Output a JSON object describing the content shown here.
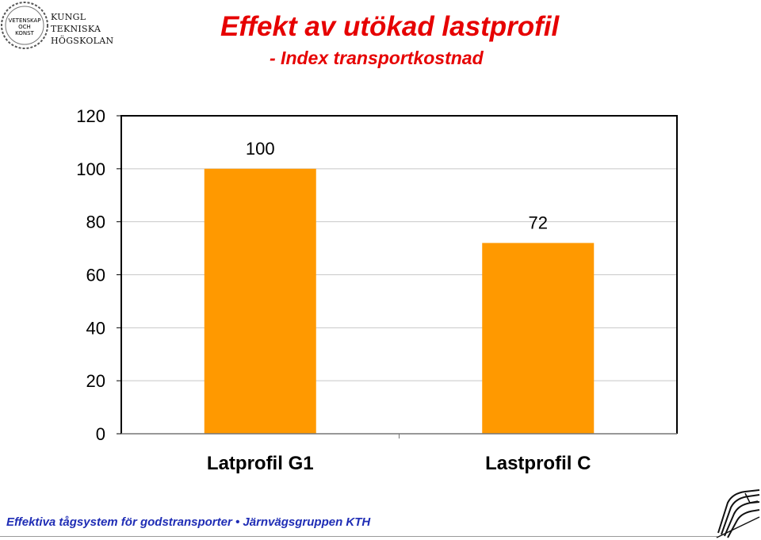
{
  "header": {
    "title": "Effekt av utökad lastprofil",
    "subtitle": "- Index transportkostnad"
  },
  "logo": {
    "seal_text": [
      "VETENSKAP",
      "OCH",
      "KONST"
    ],
    "lines": [
      "KUNGL",
      "TEKNISKA",
      "HÖGSKOLAN"
    ]
  },
  "footer": {
    "text": "Effektiva tågsystem för godstransporter • Järnvägsgruppen  KTH"
  },
  "colors": {
    "title": "#e60000",
    "bar": "#ff9900",
    "footer": "#1f2db5",
    "axis": "#000000",
    "grid": "#c8c8c8"
  },
  "chart_data": {
    "type": "bar",
    "title": "",
    "xlabel": "",
    "ylabel": "",
    "categories": [
      "Latprofil G1",
      "Lastprofil C"
    ],
    "values": [
      100,
      72
    ],
    "data_labels": [
      "100",
      "72"
    ],
    "ylim": [
      0,
      120
    ],
    "yticks": [
      0,
      20,
      40,
      60,
      80,
      100,
      120
    ],
    "grid": true,
    "legend": "none"
  }
}
